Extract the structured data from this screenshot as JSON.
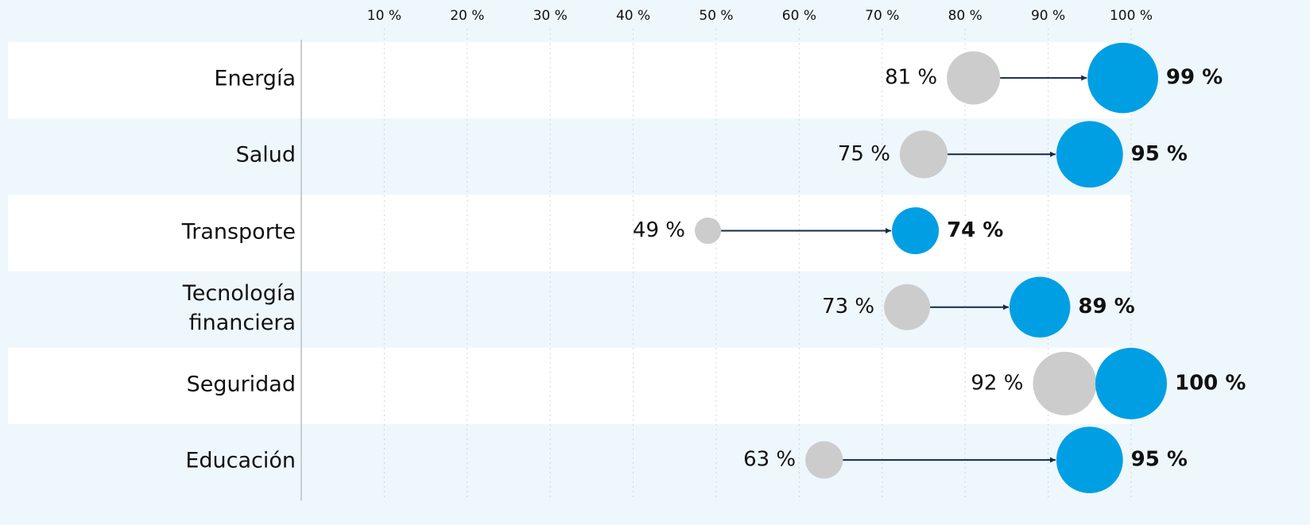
{
  "chart_data": {
    "type": "arrow-dot",
    "categories": [
      "Energía",
      "Salud",
      "Transporte",
      "Tecnología financiera",
      "Seguridad",
      "Educación"
    ],
    "series": [
      {
        "color": "#cccccc",
        "values": [
          81,
          75,
          49,
          73,
          92,
          63
        ],
        "value_labels": [
          "81 %",
          "75 %",
          "49 %",
          "73 %",
          "92 %",
          "63 %"
        ]
      },
      {
        "color": "#009fe3",
        "values": [
          99,
          95,
          74,
          89,
          100,
          95
        ],
        "value_labels": [
          "99 %",
          "95 %",
          "74 %",
          "89 %",
          "100 %",
          "95 %"
        ]
      }
    ],
    "xlim": [
      0,
      100
    ],
    "xticks": [
      {
        "value": 10,
        "label": "10 %"
      },
      {
        "value": 20,
        "label": "20 %"
      },
      {
        "value": 30,
        "label": "30 %"
      },
      {
        "value": 40,
        "label": "40 %"
      },
      {
        "value": 50,
        "label": "50 %"
      },
      {
        "value": 60,
        "label": "60 %"
      },
      {
        "value": 70,
        "label": "70 %"
      },
      {
        "value": 80,
        "label": "80 %"
      },
      {
        "value": 90,
        "label": "90 %"
      },
      {
        "value": 100,
        "label": "100 %"
      }
    ],
    "grid": true
  }
}
